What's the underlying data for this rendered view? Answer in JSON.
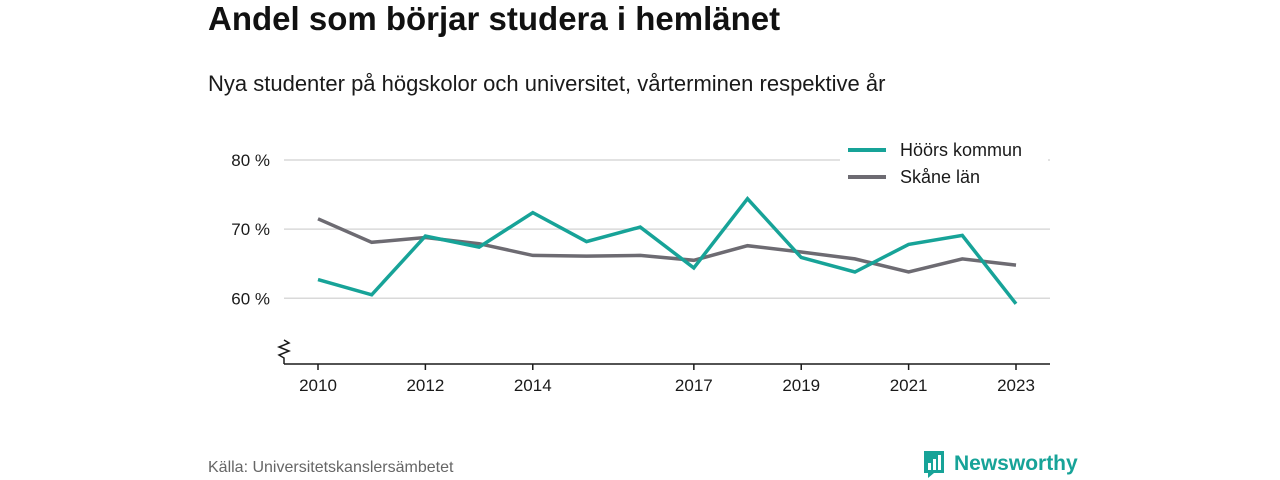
{
  "title": "Andel som börjar studera i hemlänet",
  "subtitle": "Nya studenter på högskolor och universitet, vårterminen respektive år",
  "source": "Källa: Universitetskanslersämbetet",
  "brand": {
    "name": "Newsworthy",
    "icon": "newsworthy-logo-icon",
    "color": "#17a398"
  },
  "chart_data": {
    "type": "line",
    "x": [
      2010,
      2011,
      2012,
      2013,
      2014,
      2015,
      2016,
      2017,
      2018,
      2019,
      2020,
      2021,
      2022,
      2023
    ],
    "x_ticks": [
      2010,
      2012,
      2014,
      2017,
      2019,
      2021,
      2023
    ],
    "y_ticks": [
      60,
      70,
      80
    ],
    "y_tick_labels": [
      "60 %",
      "70 %",
      "80 %"
    ],
    "ylim": [
      50.5,
      80
    ],
    "y_axis_break": true,
    "grid": true,
    "legend_position": "top-right",
    "series": [
      {
        "name": "Höörs kommun",
        "color": "#17a398",
        "values": [
          62.7,
          60.5,
          69.0,
          67.4,
          72.4,
          68.2,
          70.3,
          64.4,
          74.4,
          65.9,
          63.8,
          67.8,
          69.1,
          59.2
        ]
      },
      {
        "name": "Skåne län",
        "color": "#6d6b72",
        "values": [
          71.5,
          68.1,
          68.8,
          67.9,
          66.2,
          66.1,
          66.2,
          65.5,
          67.6,
          66.7,
          65.7,
          63.8,
          65.7,
          64.8
        ]
      }
    ]
  }
}
